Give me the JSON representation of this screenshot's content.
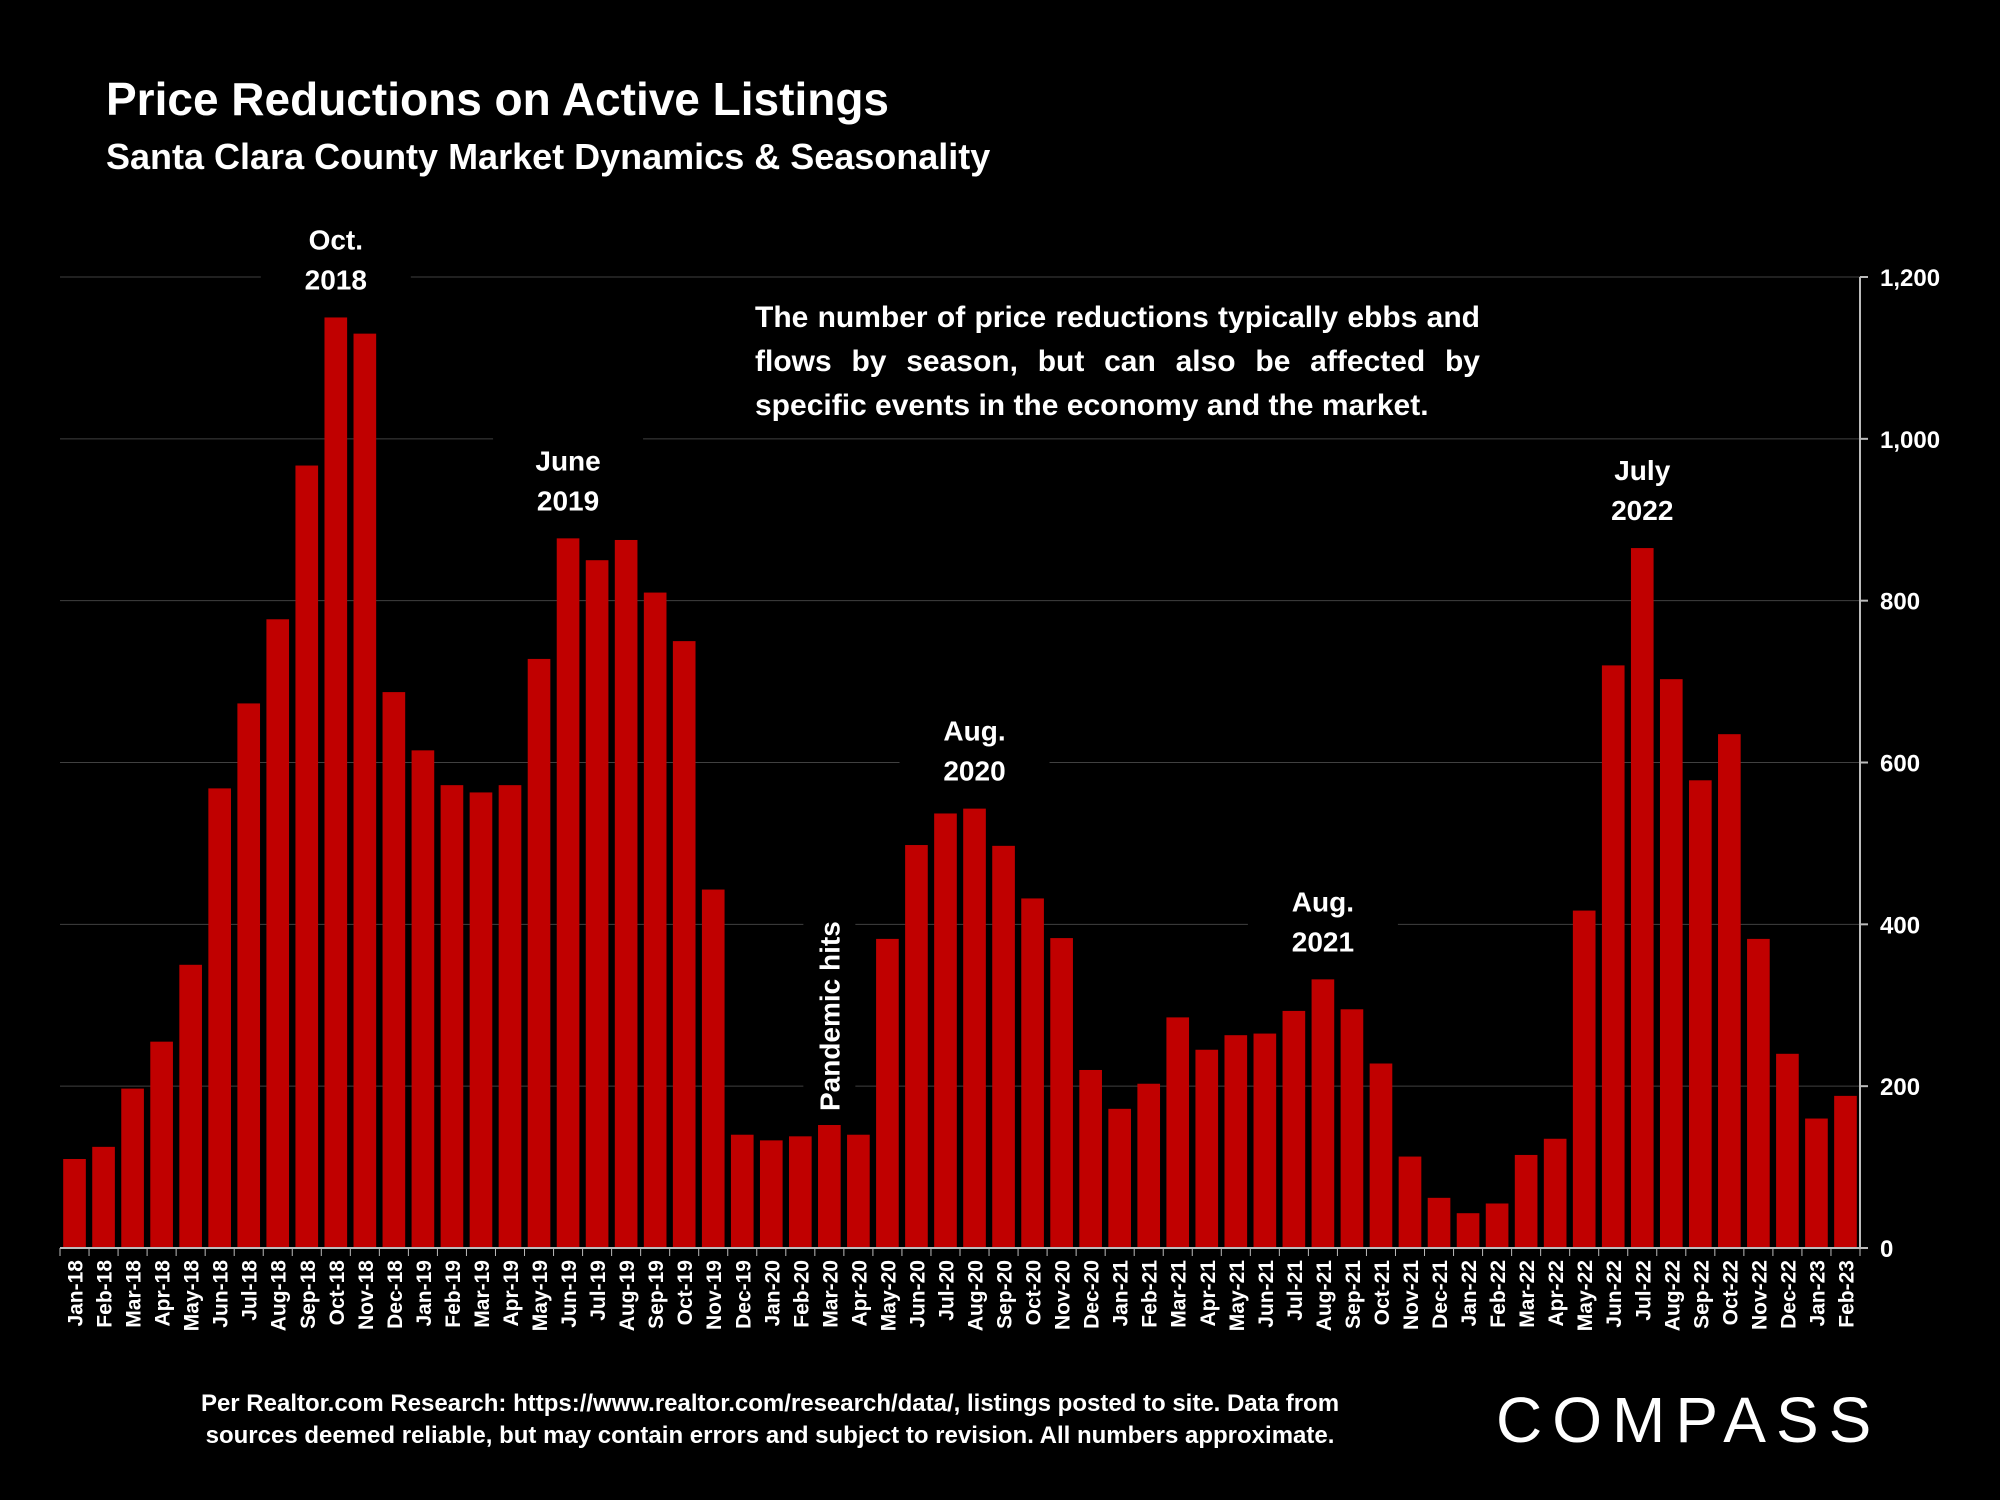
{
  "title": "Price Reductions on Active Listings",
  "subtitle": "Santa Clara County Market Dynamics & Seasonality",
  "note": "The number of price reductions typically ebbs and flows by season, but can also be affected by specific events in the economy and the market.",
  "source_line1": "Per Realtor.com Research:  https://www.realtor.com/research/data/, listings posted to site. Data from",
  "source_line2": "sources deemed reliable, but may contain errors and subject to revision. All numbers approximate.",
  "brand": "COMPASS",
  "colors": {
    "bar": "#c00000",
    "background": "#000000",
    "grid": "#404040",
    "text": "#ffffff"
  },
  "chart_data": {
    "type": "bar",
    "categories": [
      "Jan-18",
      "Feb-18",
      "Mar-18",
      "Apr-18",
      "May-18",
      "Jun-18",
      "Jul-18",
      "Aug-18",
      "Sep-18",
      "Oct-18",
      "Nov-18",
      "Dec-18",
      "Jan-19",
      "Feb-19",
      "Mar-19",
      "Apr-19",
      "May-19",
      "Jun-19",
      "Jul-19",
      "Aug-19",
      "Sep-19",
      "Oct-19",
      "Nov-19",
      "Dec-19",
      "Jan-20",
      "Feb-20",
      "Mar-20",
      "Apr-20",
      "May-20",
      "Jun-20",
      "Jul-20",
      "Aug-20",
      "Sep-20",
      "Oct-20",
      "Nov-20",
      "Dec-20",
      "Jan-21",
      "Feb-21",
      "Mar-21",
      "Apr-21",
      "May-21",
      "Jun-21",
      "Jul-21",
      "Aug-21",
      "Sep-21",
      "Oct-21",
      "Nov-21",
      "Dec-21",
      "Jan-22",
      "Feb-22",
      "Mar-22",
      "Apr-22",
      "May-22",
      "Jun-22",
      "Jul-22",
      "Aug-22",
      "Sep-22",
      "Oct-22",
      "Nov-22",
      "Dec-22",
      "Jan-23",
      "Feb-23"
    ],
    "values": [
      110,
      125,
      197,
      255,
      350,
      568,
      673,
      777,
      967,
      1150,
      1130,
      687,
      615,
      572,
      563,
      572,
      728,
      877,
      850,
      875,
      810,
      750,
      443,
      140,
      133,
      138,
      152,
      140,
      382,
      498,
      537,
      543,
      497,
      432,
      383,
      220,
      172,
      203,
      285,
      245,
      263,
      265,
      293,
      332,
      295,
      228,
      113,
      62,
      43,
      55,
      115,
      135,
      417,
      720,
      865,
      703,
      578,
      635,
      382,
      240,
      160,
      188
    ],
    "ylim": [
      0,
      1200
    ],
    "yticks": [
      0,
      200,
      400,
      600,
      800,
      1000,
      1200
    ],
    "ytick_labels": [
      "0",
      "200",
      "400",
      "600",
      "800",
      "1,000",
      "1,200"
    ],
    "grid": true,
    "y_axis_side": "right",
    "annotations": [
      {
        "category": "Oct-18",
        "line1": "Oct.",
        "line2": "2018"
      },
      {
        "category": "Jun-19",
        "line1": "June",
        "line2": "2019"
      },
      {
        "category": "Aug-20",
        "line1": "Aug.",
        "line2": "2020"
      },
      {
        "category": "Aug-21",
        "line1": "Aug.",
        "line2": "2021"
      },
      {
        "category": "Jul-22",
        "line1": "July",
        "line2": "2022"
      },
      {
        "category": "Mar-20",
        "line1": "Pandemic hits",
        "line2": "",
        "vertical": true
      }
    ]
  }
}
